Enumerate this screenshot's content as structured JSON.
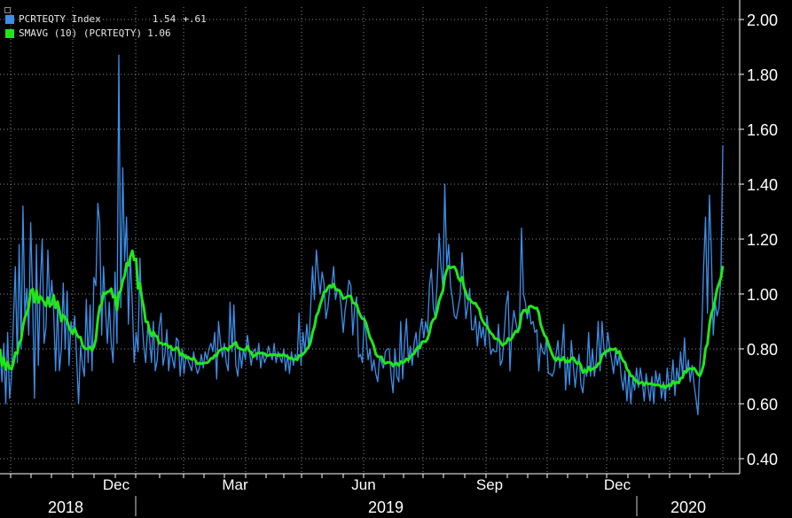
{
  "legend": {
    "series1_name": "PCRTEQTY Index",
    "series1_last": "1.54",
    "series1_change": "+.61",
    "series1_color": "#3d8fe8",
    "series2_name": "SMAVG (10) (PCRTEQTY)",
    "series2_last": "1.06",
    "series2_color": "#22e61c"
  },
  "chart_data": {
    "type": "line",
    "ylim": [
      0.4,
      2.0
    ],
    "y_ticks": [
      "2.00",
      "1.80",
      "1.60",
      "1.40",
      "1.20",
      "1.00",
      "0.80",
      "0.60",
      "0.40"
    ],
    "month_labels": [
      "Dec",
      "Mar",
      "Jun",
      "Sep",
      "Dec"
    ],
    "year_labels": [
      "2018",
      "2019",
      "2020"
    ],
    "series": [
      {
        "name": "PCRTEQTY Index",
        "color": "#3d8fe8",
        "values": [
          0.8,
          0.68,
          0.82,
          0.6,
          0.86,
          0.62,
          0.7,
          0.9,
          1.1,
          0.75,
          1.18,
          0.8,
          1.32,
          0.92,
          1.02,
          0.85,
          1.26,
          0.98,
          0.62,
          1.18,
          0.74,
          1.03,
          1.2,
          0.82,
          0.88,
          1.16,
          0.95,
          1.05,
          0.94,
          0.72,
          0.97,
          0.72,
          0.8,
          1.04,
          0.8,
          1.01,
          0.74,
          0.9,
          0.85,
          0.92,
          0.76,
          0.6,
          0.81,
          0.74,
          0.7,
          0.98,
          0.75,
          0.96,
          0.72,
          1.06,
          1.03,
          1.33,
          1.26,
          0.85,
          1.1,
          0.95,
          0.82,
          0.97,
          0.82,
          0.75,
          1.08,
          0.82,
          1.87,
          0.95,
          1.46,
          1.12,
          1.28,
          0.89,
          1.14,
          0.96,
          0.75,
          0.86,
          0.79,
          1.13,
          0.91,
          0.81,
          0.75,
          0.88,
          0.84,
          0.75,
          0.9,
          0.72,
          0.76,
          0.88,
          0.93,
          0.74,
          0.78,
          0.87,
          0.72,
          0.8,
          0.76,
          0.73,
          0.84,
          0.83,
          0.7,
          0.8,
          0.71,
          0.78,
          0.76,
          0.74,
          0.72,
          0.79,
          0.74,
          0.71,
          0.73,
          0.78,
          0.73,
          0.79,
          0.76,
          0.8,
          0.82,
          0.79,
          0.86,
          0.69,
          0.9,
          0.82,
          0.77,
          0.82,
          0.75,
          0.72,
          0.97,
          0.79,
          0.96,
          0.74,
          0.7,
          0.8,
          0.73,
          0.8,
          0.76,
          0.85,
          0.8,
          0.74,
          0.79,
          0.8,
          0.76,
          0.82,
          0.73,
          0.79,
          0.75,
          0.77,
          0.81,
          0.78,
          0.76,
          0.82,
          0.75,
          0.79,
          0.77,
          0.75,
          0.8,
          0.72,
          0.78,
          0.71,
          0.79,
          0.74,
          0.78,
          0.76,
          0.93,
          0.74,
          0.86,
          0.79,
          0.89,
          0.8,
          0.95,
          1.1,
          0.98,
          1.16,
          1.07,
          1.0,
          1.08,
          1.04,
          0.91,
          0.95,
          1.02,
          1.03,
          1.1,
          0.98,
          1.02,
          1.01,
          0.95,
          0.86,
          0.94,
          0.99,
          1.05,
          1.03,
          0.85,
          0.95,
          0.99,
          0.77,
          0.78,
          0.75,
          0.92,
          0.84,
          0.76,
          0.8,
          0.72,
          0.76,
          0.71,
          0.68,
          0.77,
          0.75,
          0.73,
          0.79,
          0.8,
          0.8,
          0.7,
          0.64,
          0.8,
          0.7,
          0.68,
          0.9,
          0.69,
          0.82,
          0.91,
          0.75,
          0.81,
          0.74,
          0.82,
          0.86,
          0.77,
          0.86,
          0.91,
          0.84,
          0.9,
          0.86,
          1.03,
          1.09,
          0.95,
          0.91,
          1.04,
          1.22,
          1.1,
          1.02,
          1.4,
          1.1,
          1.18,
          1.03,
          0.98,
          0.92,
          0.91,
          0.95,
          0.99,
          1.15,
          1.03,
          0.91,
          0.96,
          1.02,
          0.87,
          0.87,
          0.92,
          0.81,
          0.9,
          0.84,
          0.88,
          0.81,
          0.92,
          0.85,
          0.78,
          0.8,
          0.79,
          0.79,
          0.89,
          0.74,
          0.76,
          0.86,
          0.96,
          1.01,
          0.72,
          0.87,
          0.94,
          0.9,
          0.86,
          0.9,
          1.24,
          1.0,
          0.97,
          0.91,
          0.95,
          0.89,
          0.9,
          0.86,
          0.87,
          0.72,
          0.82,
          0.79,
          0.78,
          0.84,
          0.71,
          0.71,
          0.7,
          0.72,
          0.78,
          0.83,
          0.73,
          0.79,
          0.89,
          0.65,
          0.77,
          0.67,
          0.83,
          0.74,
          0.66,
          0.73,
          0.78,
          0.67,
          0.64,
          0.73,
          0.7,
          0.86,
          0.7,
          0.8,
          0.7,
          0.76,
          0.9,
          0.72,
          0.9,
          0.8,
          0.77,
          0.86,
          0.8,
          0.76,
          0.71,
          0.79,
          0.74,
          0.78,
          0.7,
          0.65,
          0.72,
          0.61,
          0.72,
          0.6,
          0.69,
          0.65,
          0.73,
          0.66,
          0.73,
          0.68,
          0.61,
          0.71,
          0.66,
          0.61,
          0.7,
          0.6,
          0.72,
          0.67,
          0.71,
          0.62,
          0.68,
          0.61,
          0.73,
          0.65,
          0.67,
          0.76,
          0.63,
          0.73,
          0.68,
          0.79,
          0.7,
          0.84,
          0.71,
          0.76,
          0.68,
          0.74,
          0.67,
          0.62,
          0.56,
          0.74,
          0.86,
          1.1,
          1.28,
          0.93,
          1.36,
          1.16,
          0.85,
          0.97,
          0.92,
          0.95,
          1.06,
          1.54
        ]
      },
      {
        "name": "SMAVG (10) (PCRTEQTY)",
        "color": "#22e61c",
        "values": []
      }
    ]
  }
}
